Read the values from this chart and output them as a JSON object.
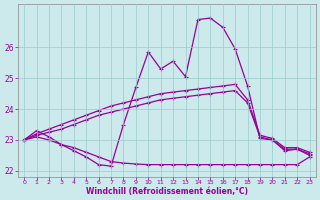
{
  "xlabel": "Windchill (Refroidissement éolien,°C)",
  "xlim": [
    -0.5,
    23.5
  ],
  "ylim": [
    21.8,
    27.4
  ],
  "yticks": [
    22,
    23,
    24,
    25,
    26
  ],
  "xticks": [
    0,
    1,
    2,
    3,
    4,
    5,
    6,
    7,
    8,
    9,
    10,
    11,
    12,
    13,
    14,
    15,
    16,
    17,
    18,
    19,
    20,
    21,
    22,
    23
  ],
  "bg_color": "#cce9eb",
  "line_color": "#990099",
  "grid_color": "#99cccc",
  "line1_x": [
    0,
    1,
    2,
    3,
    4,
    5,
    6,
    7,
    8,
    9,
    10,
    11,
    12,
    13,
    14,
    15,
    16,
    17,
    18,
    19,
    20,
    21,
    22,
    23
  ],
  "line1_y": [
    23.0,
    23.3,
    23.1,
    22.85,
    22.65,
    22.45,
    22.2,
    22.15,
    23.5,
    24.7,
    25.85,
    25.3,
    25.55,
    25.05,
    26.9,
    26.95,
    26.65,
    25.95,
    24.75,
    23.05,
    23.0,
    22.65,
    22.7,
    22.5
  ],
  "line2_x": [
    0,
    1,
    2,
    3,
    4,
    5,
    6,
    7,
    8,
    9,
    10,
    11,
    12,
    13,
    14,
    15,
    16,
    17,
    18,
    19,
    20,
    21,
    22,
    23
  ],
  "line2_y": [
    23.0,
    23.1,
    23.0,
    22.85,
    22.75,
    22.6,
    22.45,
    22.3,
    22.25,
    22.22,
    22.2,
    22.2,
    22.2,
    22.2,
    22.2,
    22.2,
    22.2,
    22.2,
    22.2,
    22.2,
    22.2,
    22.2,
    22.2,
    22.45
  ],
  "line3_x": [
    0,
    1,
    2,
    3,
    4,
    5,
    6,
    7,
    8,
    9,
    10,
    11,
    12,
    13,
    14,
    15,
    16,
    17,
    18,
    19,
    20,
    21,
    22,
    23
  ],
  "line3_y": [
    23.0,
    23.15,
    23.25,
    23.35,
    23.5,
    23.65,
    23.8,
    23.9,
    24.0,
    24.1,
    24.2,
    24.3,
    24.35,
    24.4,
    24.45,
    24.5,
    24.55,
    24.6,
    24.2,
    23.1,
    23.0,
    22.7,
    22.7,
    22.55
  ],
  "line4_x": [
    0,
    1,
    2,
    3,
    4,
    5,
    6,
    7,
    8,
    9,
    10,
    11,
    12,
    13,
    14,
    15,
    16,
    17,
    18,
    19,
    20,
    21,
    22,
    23
  ],
  "line4_y": [
    23.0,
    23.2,
    23.35,
    23.5,
    23.65,
    23.8,
    23.95,
    24.1,
    24.2,
    24.3,
    24.4,
    24.5,
    24.55,
    24.6,
    24.65,
    24.7,
    24.75,
    24.8,
    24.3,
    23.15,
    23.05,
    22.75,
    22.75,
    22.6
  ],
  "marker": "+",
  "markersize": 3,
  "linewidth": 0.9
}
